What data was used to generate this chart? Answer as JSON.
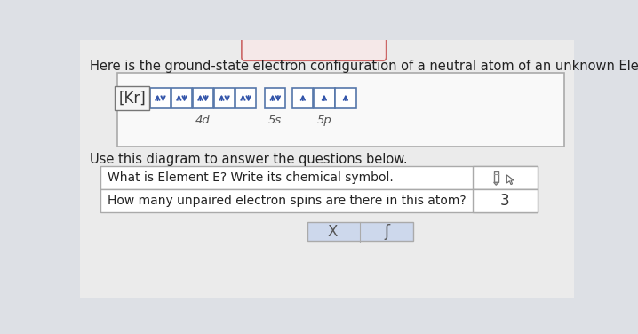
{
  "bg_color": "#dde0e5",
  "page_bg": "#f0f0f0",
  "title_text": "Here is the ground-state electron configuration of a neutral atom of an unknown Element E.",
  "title_fontsize": 10.5,
  "title_color": "#222222",
  "box_bg": "#f8f8f8",
  "box_border": "#999999",
  "kr_label": "[Kr]",
  "orbital_box_color": "#ffffff",
  "orbital_box_border": "#5577aa",
  "arrow_color": "#3355aa",
  "subshell_labels": [
    "4d",
    "5s",
    "5p"
  ],
  "subtitle": "Use this diagram to answer the questions below.",
  "q1_text": "What is Element E? Write its chemical symbol.",
  "q2_text": "How many unpaired electron spins are there in this atom?",
  "answer2": "3",
  "bottom_x": "X",
  "bottom_s": "ʃ",
  "bottom_box_color": "#cdd8ec",
  "answer_box_color": "#ffffff",
  "answer_border": "#999999",
  "table_bg": "#ffffff",
  "table_border": "#aaaaaa"
}
